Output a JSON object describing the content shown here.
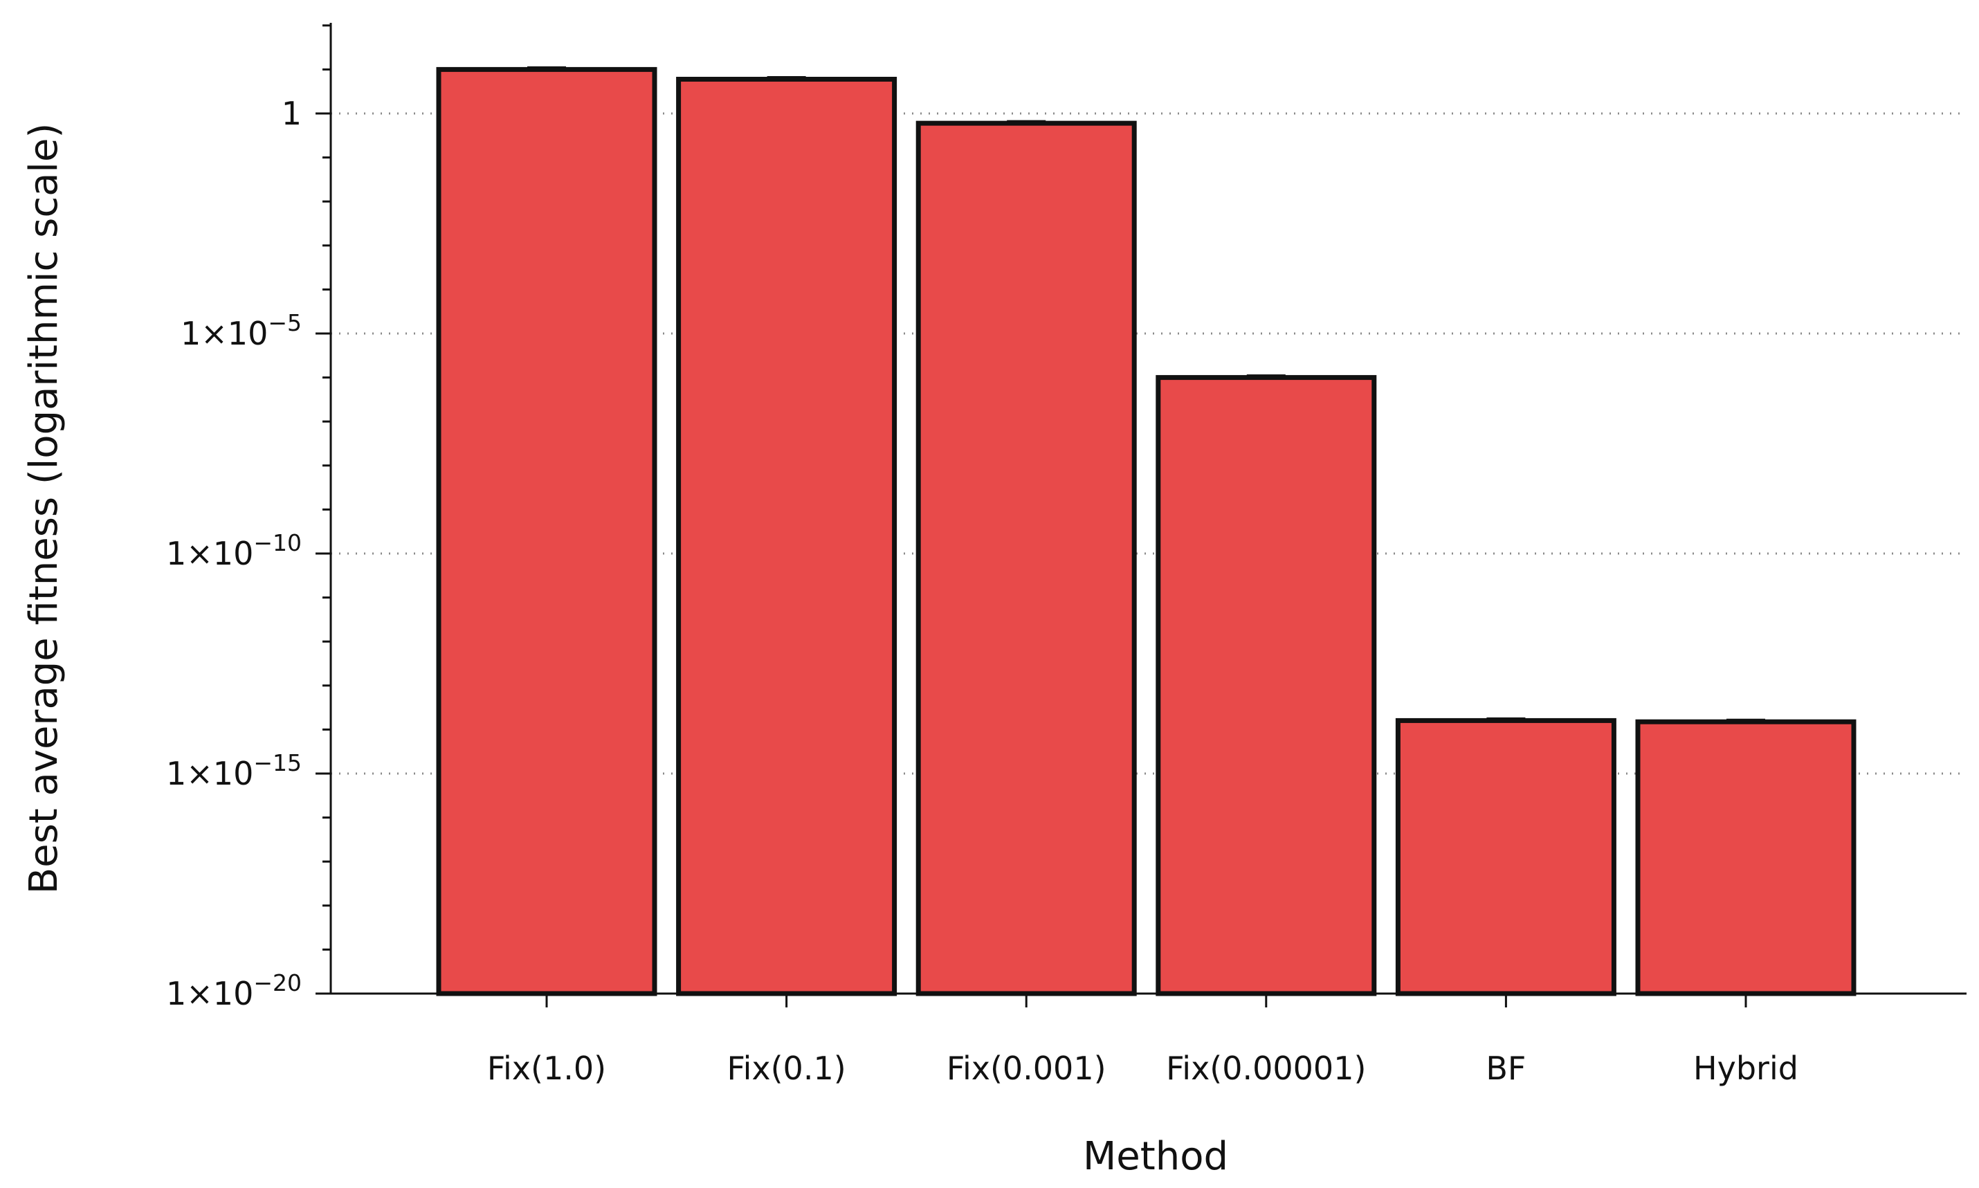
{
  "chart_data": {
    "type": "bar",
    "xlabel": "Method",
    "ylabel": "Best average fitness (logarithmic scale)",
    "y_scale": "log",
    "ylim_exponents": [
      -20,
      2
    ],
    "categories": [
      "Fix(1.0)",
      "Fix(0.1)",
      "Fix(0.001)",
      "Fix(0.00001)",
      "BF",
      "Hybrid"
    ],
    "values": [
      10,
      6,
      0.6,
      1e-06,
      1.6e-14,
      1.5e-14
    ],
    "bar_color": "#e84a4a",
    "y_ticks": [
      {
        "exp": 0,
        "mantissa": "1",
        "exponent": ""
      },
      {
        "exp": -5,
        "mantissa": "1×10",
        "exponent": "−5"
      },
      {
        "exp": -10,
        "mantissa": "1×10",
        "exponent": "−10"
      },
      {
        "exp": -15,
        "mantissa": "1×10",
        "exponent": "−15"
      },
      {
        "exp": -20,
        "mantissa": "1×10",
        "exponent": "−20"
      }
    ],
    "grid": "horizontal-dotted"
  }
}
